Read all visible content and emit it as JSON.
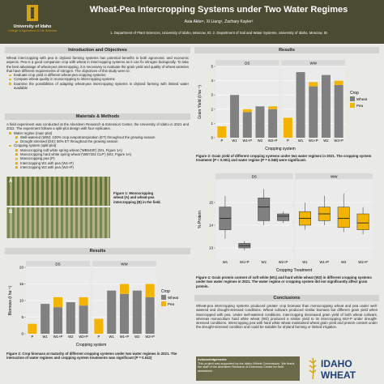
{
  "header": {
    "logo_name": "University of Idaho",
    "logo_sub": "College of Agricultural & Life Sciences",
    "title": "Wheat-Pea Intercropping Systems under Two Water Regimes",
    "authors": "Asia Akter¹, Xi Liang¹, Zachary Kayler²",
    "affiliations": "1. Department of Plant Sciences, University of Idaho, Moscow, ID; 2. Department of Soil and Water Systems, University of Idaho, Moscow, ID"
  },
  "introduction": {
    "heading": "Introduction and Objectives",
    "paragraph": "Wheat intercropping with pea in dryland farming systems has potential benefits in both agronomic and economic aspects. Pea is a good companion crop with wheat in intercropping systems as it can fix nitrogen biologically. To take the best advantage of wheat-pea intercropping, it is necessary to evaluate the grain yield and quality of wheat varieties that have different requirements of nitrogen. The objectives of this study were to:",
    "bullets": [
      "Evaluate crop yield in different wheat-pea cropping systems",
      "Compare wheat quality in monocropping to intercropping systems",
      "Examine the possibilities of adapting wheat-pea intercropping systems in dryland farming with limited water available"
    ]
  },
  "methods": {
    "heading": "Materials & Methods",
    "paragraph": "A field experiment was conducted at the Aberdeen Research & Extension Center, the University of Idaho in 2021 and 2022. The experiment follows a split-plot design with four replicates.",
    "items": [
      {
        "text": "Water regime (main plot)",
        "sub": [
          "Well-watered (WW): 100% crop evapotranspiration (ET) throughout the growing season",
          "Drought stressed (DS): 50% ET throughout the growing season"
        ]
      },
      {
        "text": "Cropping system (split-plot)",
        "sub": [
          "Monocropping soft white spring wheat ('WB6430') (W1, Figure 1A)",
          "Monocropping hard white spring wheat ('WB7202 CLP') (W2, Figure 1A)",
          "Monocropping pea (P)",
          "Intercropping W1 with pea (W1+P)",
          "Intercropping W2 with pea (W2+P)"
        ]
      }
    ]
  },
  "figure1": {
    "panels": [
      "A",
      "B"
    ],
    "caption": "Figure 1: Monocropping wheat (A) and wheat-pea intercropping (B) in the field."
  },
  "results_left_heading": "Results",
  "results_right_heading": "Results",
  "chart_data": [
    {
      "type": "bar",
      "x_label": "Cropping system",
      "y_label": "Biomass (t ha⁻¹)",
      "categories": [
        "P",
        "W1",
        "W1+P",
        "W2",
        "W2+P"
      ],
      "facets": [
        "DS",
        "WW"
      ],
      "series": [
        {
          "name": "Wheat",
          "color": "#808080",
          "facet_values": [
            [
              null,
              9,
              8,
              9.5,
              8.5
            ],
            [
              null,
              13,
              12,
              13,
              11
            ]
          ]
        },
        {
          "name": "Pea",
          "color": "#f2b400",
          "facet_values": [
            [
              3,
              null,
              3,
              null,
              2.5
            ],
            [
              4.5,
              null,
              3,
              null,
              4
            ]
          ]
        }
      ],
      "legend_title": "Crop",
      "ylim": [
        0,
        20
      ],
      "yticks": [
        0,
        5,
        10,
        15,
        20
      ],
      "stacked": true
    },
    {
      "type": "bar",
      "x_label": "Cropping system",
      "y_label": "Grain Yield (t ha⁻¹)",
      "categories": [
        "P",
        "W1",
        "W1+P",
        "W2",
        "W2+P"
      ],
      "facets": [
        "DS",
        "WW"
      ],
      "series": [
        {
          "name": "Wheat",
          "color": "#808080",
          "facet_values": [
            [
              null,
              3.0,
              1.8,
              2.2,
              2.0
            ],
            [
              null,
              4.6,
              3.6,
              4.4,
              3.7
            ]
          ]
        },
        {
          "name": "Pea",
          "color": "#f2b400",
          "facet_values": [
            [
              0.8,
              null,
              0.2,
              null,
              0.2
            ],
            [
              1.4,
              null,
              0.3,
              null,
              0.3
            ]
          ]
        }
      ],
      "legend_title": "Crop",
      "ylim": [
        0,
        5
      ],
      "yticks": [
        0,
        1,
        2,
        3,
        4,
        5
      ],
      "stacked": true
    },
    {
      "type": "box",
      "x_label": "Cropping Treatment",
      "y_label": "% Protein",
      "categories": [
        "W1",
        "W1+P",
        "W2",
        "W2+P"
      ],
      "facets": [
        "DS",
        "WW"
      ],
      "facet_colors": [
        "#808080",
        "#f2b400"
      ],
      "boxes": [
        [
          {
            "min": 13.4,
            "q1": 13.8,
            "median": 14.3,
            "q3": 14.8,
            "max": 15.3
          },
          {
            "min": 12.9,
            "q1": 13.0,
            "median": 13.1,
            "q3": 13.2,
            "max": 13.3
          },
          {
            "min": 14.0,
            "q1": 14.2,
            "median": 14.8,
            "q3": 15.2,
            "max": 15.6
          },
          {
            "min": 14.1,
            "q1": 14.2,
            "median": 14.4,
            "q3": 14.5,
            "max": 14.6
          }
        ],
        [
          {
            "min": 13.8,
            "q1": 14.0,
            "median": 14.3,
            "q3": 14.6,
            "max": 15.0
          },
          {
            "min": 14.0,
            "q1": 14.2,
            "median": 14.5,
            "q3": 14.8,
            "max": 15.3
          },
          {
            "min": 13.7,
            "q1": 13.9,
            "median": 14.3,
            "q3": 14.8,
            "max": 15.4
          },
          {
            "min": 13.6,
            "q1": 13.8,
            "median": 14.1,
            "q3": 14.5,
            "max": 14.8
          }
        ]
      ],
      "ylim": [
        12.5,
        16
      ],
      "yticks": [
        13,
        14,
        15
      ]
    }
  ],
  "figure2_caption": "Figure 2: Crop biomass at maturity of different cropping systems under two water regimes in 2021. The interaction of water regimes and cropping system treatments was significant (P = 0.042)",
  "figure3_caption": "Figure 3: Grain yield of different cropping systems under two water regimes in 2021. The cropping system treatment (P < 0.001) and water regime (P = 0.048) were significant.",
  "figure4_caption": "Figure 4: Grain protein content of soft white (W1) and hard white wheat (W2) in different cropping systems under two water regimes in 2021. The water regime or cropping system did not significantly affect grain protein.",
  "conclusions": {
    "heading": "Conclusions",
    "paragraph": "Wheat-pea intercropping systems produced greater crop biomass than monocropping wheat and pea under well-watered and drought-stressed conditions. Wheat cultivars produced similar biomass but different grain yield when intercropped with pea. Under well-watered conditions, intercropping decreased grain yield of both wheat cultivars, whereas monoculture hard white wheat (W2) produced a similar yield to its intercropping W2+P under drought-stressed conditions. Intercropping pea with hard white wheat maintained wheat grain yield and protein content under the drought-stressed condition and could be suitable for dryland farming or limited irrigation."
  },
  "acknowledgements": {
    "heading": "Acknowledgements",
    "text": "This project was supported by the Idaho Wheat Commission. We thank the staff of the Aberdeen Research & Extension Center for field assistance."
  },
  "sponsor_logo": [
    "IDAHO",
    "WHEAT"
  ]
}
